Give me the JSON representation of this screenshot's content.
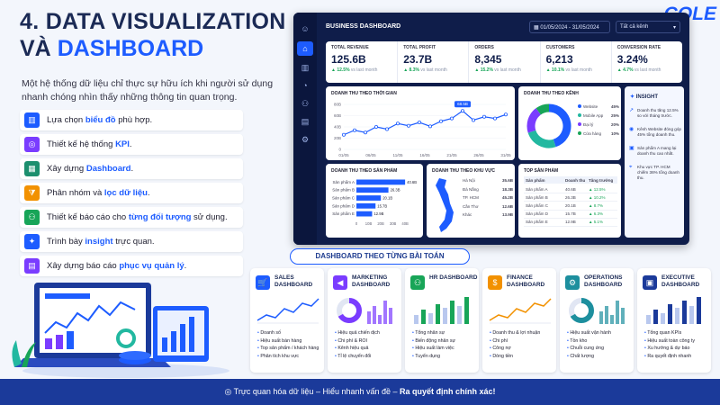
{
  "header": {
    "title_line1": "4. DATA VISUALIZATION",
    "title_line2_prefix": "VÀ ",
    "title_line2_highlight": "DASHBOARD",
    "intro": "Một hệ thống dữ liệu chỉ thực sự hữu ích khi người sử dụng nhanh chóng nhìn thấy những thông tin quan trọng.",
    "logo": "COLE"
  },
  "features": [
    {
      "pre": "Lựa chọn ",
      "hl": "biểu đồ",
      "post": " phù hợp.",
      "icon": "bar-chart-icon",
      "color": "#1d5cff"
    },
    {
      "pre": "Thiết kế hệ thống ",
      "hl": "KPI",
      "post": ".",
      "icon": "target-icon",
      "color": "#7a3cff"
    },
    {
      "pre": "Xây dựng ",
      "hl": "Dashboard",
      "post": ".",
      "icon": "dashboard-icon",
      "color": "#1d8f6e"
    },
    {
      "pre": "Phân nhóm và ",
      "hl": "lọc dữ liệu",
      "post": ".",
      "icon": "filter-icon",
      "color": "#f29100"
    },
    {
      "pre": "Thiết kế báo cáo cho ",
      "hl": "từng đối tượng",
      "post": " sử dụng.",
      "icon": "users-icon",
      "color": "#18a558"
    },
    {
      "pre": "Trình bày ",
      "hl": "insight",
      "post": " trực quan.",
      "icon": "lightbulb-icon",
      "color": "#1d5cff"
    },
    {
      "pre": "Xây dựng báo cáo ",
      "hl": "phục vụ quản lý",
      "post": ".",
      "icon": "report-icon",
      "color": "#7a3cff"
    }
  ],
  "dashboard": {
    "title": "BUSINESS DASHBOARD",
    "date_range": "01/05/2024 - 31/05/2024",
    "filter": "Tất cả kênh",
    "kpis": [
      {
        "label": "TOTAL REVENUE",
        "value": "125.6B",
        "change": "▲ 12.5%",
        "note": "vs last month"
      },
      {
        "label": "TOTAL PROFIT",
        "value": "23.7B",
        "change": "▲ 8.3%",
        "note": "vs last month"
      },
      {
        "label": "ORDERS",
        "value": "8,345",
        "change": "▲ 15.2%",
        "note": "vs last month"
      },
      {
        "label": "CUSTOMERS",
        "value": "6,213",
        "change": "▲ 10.1%",
        "note": "vs last month"
      },
      {
        "label": "CONVERSION RATE",
        "value": "3.24%",
        "change": "▲ 4.7%",
        "note": "vs last month"
      }
    ],
    "line_title": "DOANH THU THEO THỜI GIAN",
    "line_peak_label": "68.5B",
    "line_y_ticks": [
      "80B",
      "60B",
      "40B",
      "20B",
      "0"
    ],
    "line_x_ticks": [
      "01/05",
      "06/05",
      "11/05",
      "16/05",
      "21/05",
      "26/05",
      "31/05"
    ],
    "channel_title": "DOANH THU THEO KÊNH",
    "channels": [
      {
        "name": "Website",
        "pct": "45%",
        "color": "#1d5cff"
      },
      {
        "name": "Mobile App",
        "pct": "25%",
        "color": "#22b8a0"
      },
      {
        "name": "Đại lý",
        "pct": "20%",
        "color": "#7a3cff"
      },
      {
        "name": "Cửa hàng",
        "pct": "10%",
        "color": "#18a558"
      }
    ],
    "insight": {
      "title": "INSIGHT",
      "items": [
        "Doanh thu tăng 12.5% so với tháng trước.",
        "Kênh Website đóng góp 45% tổng doanh thu.",
        "Sản phẩm A mang lại doanh thu cao nhất.",
        "Khu vực TP. HCM chiếm 36% tổng doanh thu."
      ]
    },
    "product_title": "DOANH THU THEO SẢN PHẨM",
    "products": [
      {
        "name": "Sản phẩm A",
        "label": "40.6B"
      },
      {
        "name": "Sản phẩm B",
        "label": "26.3B"
      },
      {
        "name": "Sản phẩm C",
        "label": "20.1B"
      },
      {
        "name": "Sản phẩm D",
        "label": "15.7B"
      },
      {
        "name": "Sản phẩm E",
        "label": "12.9B"
      }
    ],
    "product_x_ticks": [
      "0",
      "10B",
      "20B",
      "30B",
      "40B"
    ],
    "region_title": "DOANH THU THEO KHU VỰC",
    "regions": [
      {
        "name": "Hà Nội",
        "value": "35.6B"
      },
      {
        "name": "Đà Nẵng",
        "value": "18.3B"
      },
      {
        "name": "TP. HCM",
        "value": "45.2B"
      },
      {
        "name": "Cần Thơ",
        "value": "12.6B"
      },
      {
        "name": "Khác",
        "value": "13.9B"
      }
    ],
    "top_title": "TOP SẢN PHẨM",
    "top_headers": [
      "Sản phẩm",
      "Doanh thu",
      "Tăng trưởng"
    ],
    "top_rows": [
      [
        "Sản phẩm A",
        "40.6B",
        "▲ 12.5%"
      ],
      [
        "Sản phẩm B",
        "26.3B",
        "▲ 10.2%"
      ],
      [
        "Sản phẩm C",
        "20.1B",
        "▲ 8.7%"
      ],
      [
        "Sản phẩm D",
        "15.7B",
        "▲ 6.3%"
      ],
      [
        "Sản phẩm E",
        "12.9B",
        "▲ 5.1%"
      ]
    ]
  },
  "section_title": "DASHBOARD THEO TỪNG BÀI TOÁN",
  "cards": [
    {
      "title": "SALES DASHBOARD",
      "icon": "cart-icon",
      "color": "#1d5cff",
      "visual": "line",
      "items": [
        "Doanh số",
        "Hiệu suất bán hàng",
        "Top sản phẩm / khách hàng",
        "Phân tích khu vực"
      ]
    },
    {
      "title": "MARKETING DASHBOARD",
      "icon": "megaphone-icon",
      "color": "#7a3cff",
      "visual": "donut",
      "items": [
        "Hiệu quả chiến dịch",
        "Chi phí & ROI",
        "Kênh hiệu quả",
        "Tỉ lệ chuyển đổi"
      ]
    },
    {
      "title": "HR DASHBOARD",
      "icon": "people-icon",
      "color": "#18a558",
      "visual": "bars",
      "items": [
        "Tổng nhân sự",
        "Biến động nhân sự",
        "Hiệu suất làm việc",
        "Tuyển dụng"
      ]
    },
    {
      "title": "FINANCE DASHBOARD",
      "icon": "dollar-icon",
      "color": "#f29100",
      "visual": "line",
      "items": [
        "Doanh thu & lợi nhuận",
        "Chi phí",
        "Công nợ",
        "Dòng tiền"
      ]
    },
    {
      "title": "OPERATIONS DASHBOARD",
      "icon": "gear-icon",
      "color": "#1d8f9e",
      "visual": "donut",
      "items": [
        "Hiệu suất vận hành",
        "Tồn kho",
        "Chuỗi cung ứng",
        "Chất lượng"
      ]
    },
    {
      "title": "EXECUTIVE DASHBOARD",
      "icon": "briefcase-icon",
      "color": "#1b3a9a",
      "visual": "bars",
      "items": [
        "Tổng quan KPIs",
        "Hiệu suất toàn công ty",
        "Xu hướng & dự báo",
        "Ra quyết định nhanh"
      ]
    }
  ],
  "footer": {
    "pre": "Trực quan hóa dữ liệu – Hiểu nhanh vấn đề – ",
    "bold": "Ra quyết định chính xác!"
  },
  "chart_data": [
    {
      "type": "line",
      "title": "DOANH THU THEO THỜI GIAN",
      "x": [
        "01/05",
        "03/05",
        "05/05",
        "07/05",
        "09/05",
        "11/05",
        "13/05",
        "15/05",
        "17/05",
        "19/05",
        "21/05",
        "23/05",
        "25/05",
        "27/05",
        "29/05",
        "31/05"
      ],
      "values": [
        26,
        34,
        30,
        40,
        36,
        46,
        42,
        48,
        41,
        50,
        55,
        68.5,
        52,
        58,
        55,
        62
      ],
      "ylim": [
        0,
        80
      ],
      "annotations": [
        "68.5B"
      ]
    },
    {
      "type": "pie",
      "title": "DOANH THU THEO KÊNH",
      "categories": [
        "Website",
        "Mobile App",
        "Đại lý",
        "Cửa hàng"
      ],
      "values": [
        45,
        25,
        20,
        10
      ]
    },
    {
      "type": "bar",
      "title": "DOANH THU THEO SẢN PHẨM",
      "categories": [
        "Sản phẩm A",
        "Sản phẩm B",
        "Sản phẩm C",
        "Sản phẩm D",
        "Sản phẩm E"
      ],
      "values": [
        40.6,
        26.3,
        20.1,
        15.7,
        12.9
      ],
      "xlim": [
        0,
        40
      ]
    }
  ]
}
